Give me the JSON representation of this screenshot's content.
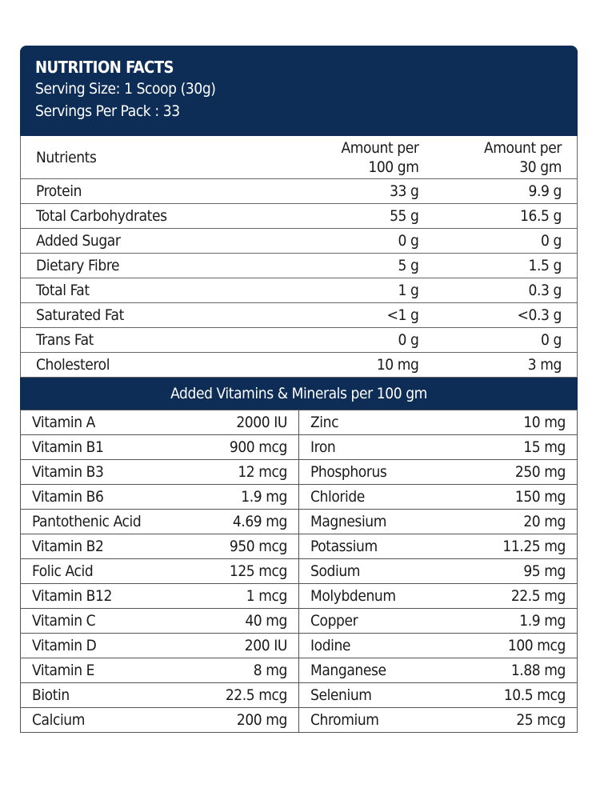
{
  "header": {
    "title": "NUTRITION FACTS",
    "serving_size": "Serving Size: 1 Scoop (30g)",
    "servings_per_pack": "Servings Per Pack : 33"
  },
  "nutrients": {
    "columns": [
      "Nutrients",
      "Amount per",
      "100 gm",
      "Amount per",
      "30 gm"
    ],
    "rows": [
      {
        "name": "Protein",
        "per100": "33 g",
        "per30": "9.9 g"
      },
      {
        "name": "Total Carbohydrates",
        "per100": "55 g",
        "per30": "16.5 g"
      },
      {
        "name": "Added Sugar",
        "per100": "0 g",
        "per30": "0 g"
      },
      {
        "name": "Dietary Fibre",
        "per100": "5 g",
        "per30": "1.5 g"
      },
      {
        "name": "Total Fat",
        "per100": "1 g",
        "per30": "0.3 g"
      },
      {
        "name": "Saturated Fat",
        "per100": "<1 g",
        "per30": "<0.3 g"
      },
      {
        "name": "Trans Fat",
        "per100": "0 g",
        "per30": "0 g"
      },
      {
        "name": "Cholesterol",
        "per100": "10 mg",
        "per30": "3 mg"
      }
    ]
  },
  "vitamins": {
    "title": "Added Vitamins & Minerals per 100 gm",
    "rows": [
      {
        "a": "Vitamin A",
        "av": "2000 IU",
        "b": "Zinc",
        "bv": "10 mg"
      },
      {
        "a": "Vitamin B1",
        "av": "900 mcg",
        "b": "Iron",
        "bv": "15 mg"
      },
      {
        "a": "Vitamin B3",
        "av": "12 mcg",
        "b": "Phosphorus",
        "bv": "250 mg"
      },
      {
        "a": "Vitamin B6",
        "av": "1.9 mg",
        "b": "Chloride",
        "bv": "150 mg"
      },
      {
        "a": "Pantothenic Acid",
        "av": "4.69 mg",
        "b": "Magnesium",
        "bv": "20 mg"
      },
      {
        "a": "Vitamin B2",
        "av": "950 mcg",
        "b": "Potassium",
        "bv": "11.25 mg"
      },
      {
        "a": "Folic Acid",
        "av": "125 mcg",
        "b": "Sodium",
        "bv": "95 mg"
      },
      {
        "a": "Vitamin B12",
        "av": "1 mcg",
        "b": "Molybdenum",
        "bv": "22.5 mg"
      },
      {
        "a": "Vitamin C",
        "av": "40 mg",
        "b": "Copper",
        "bv": "1.9 mg"
      },
      {
        "a": "Vitamin D",
        "av": "200 IU",
        "b": "Iodine",
        "bv": "100 mcg"
      },
      {
        "a": "Vitamin E",
        "av": "8 mg",
        "b": "Manganese",
        "bv": "1.88 mg"
      },
      {
        "a": "Biotin",
        "av": "22.5 mcg",
        "b": "Selenium",
        "bv": "10.5 mcg"
      },
      {
        "a": "Calcium",
        "av": "200 mg",
        "b": "Chromium",
        "bv": "25 mcg"
      }
    ]
  },
  "colors": {
    "header_bg": "#0d2d57",
    "text": "#1a1a1a"
  }
}
